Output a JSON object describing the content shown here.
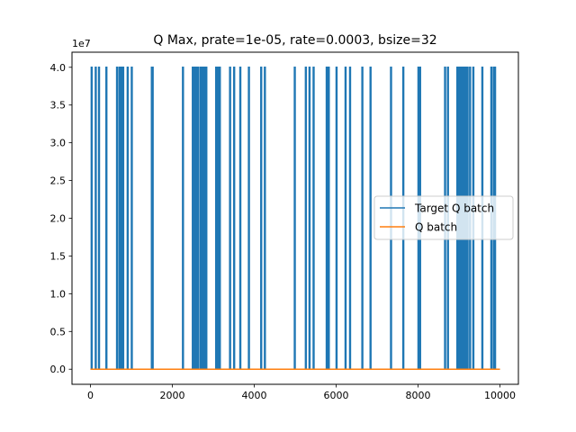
{
  "chart_data": {
    "type": "line",
    "title": "Q Max, prate=1e-05, rate=0.0003, bsize=32",
    "xlabel": "",
    "ylabel": "",
    "y_offset_label": "1e7",
    "xlim": [
      -450,
      10450
    ],
    "ylim": [
      -0.2,
      4.2
    ],
    "y_unit_multiplier": 10000000,
    "x_ticks": [
      0,
      2000,
      4000,
      6000,
      8000,
      10000
    ],
    "x_tick_labels": [
      "0",
      "2000",
      "4000",
      "6000",
      "8000",
      "10000"
    ],
    "y_ticks": [
      0.0,
      0.5,
      1.0,
      1.5,
      2.0,
      2.5,
      3.0,
      3.5,
      4.0
    ],
    "y_tick_labels": [
      "0.0",
      "0.5",
      "1.0",
      "1.5",
      "2.0",
      "2.5",
      "3.0",
      "3.5",
      "4.0"
    ],
    "grid": false,
    "legend_position": "center-right",
    "series": [
      {
        "name": "Target Q batch",
        "color": "#1f77b4",
        "baseline": 0.0,
        "spike_value": 4.0,
        "spike_x": [
          20,
          120,
          200,
          380,
          640,
          700,
          740,
          790,
          900,
          1000,
          1490,
          1510,
          2250,
          2490,
          2530,
          2580,
          2620,
          2680,
          2730,
          2780,
          2820,
          3060,
          3110,
          3150,
          3400,
          3500,
          3650,
          3860,
          4160,
          4250,
          4980,
          5250,
          5340,
          5440,
          5760,
          5810,
          6000,
          6220,
          6330,
          6630,
          6830,
          7330,
          7630,
          8000,
          8040,
          8650,
          8720,
          8950,
          8990,
          9020,
          9060,
          9100,
          9140,
          9160,
          9200,
          9260,
          9340,
          9560,
          9780,
          9840,
          9870
        ]
      },
      {
        "name": "Q batch",
        "color": "#ff7f0e",
        "baseline": 0.0,
        "x": [
          0,
          10000
        ]
      }
    ]
  }
}
